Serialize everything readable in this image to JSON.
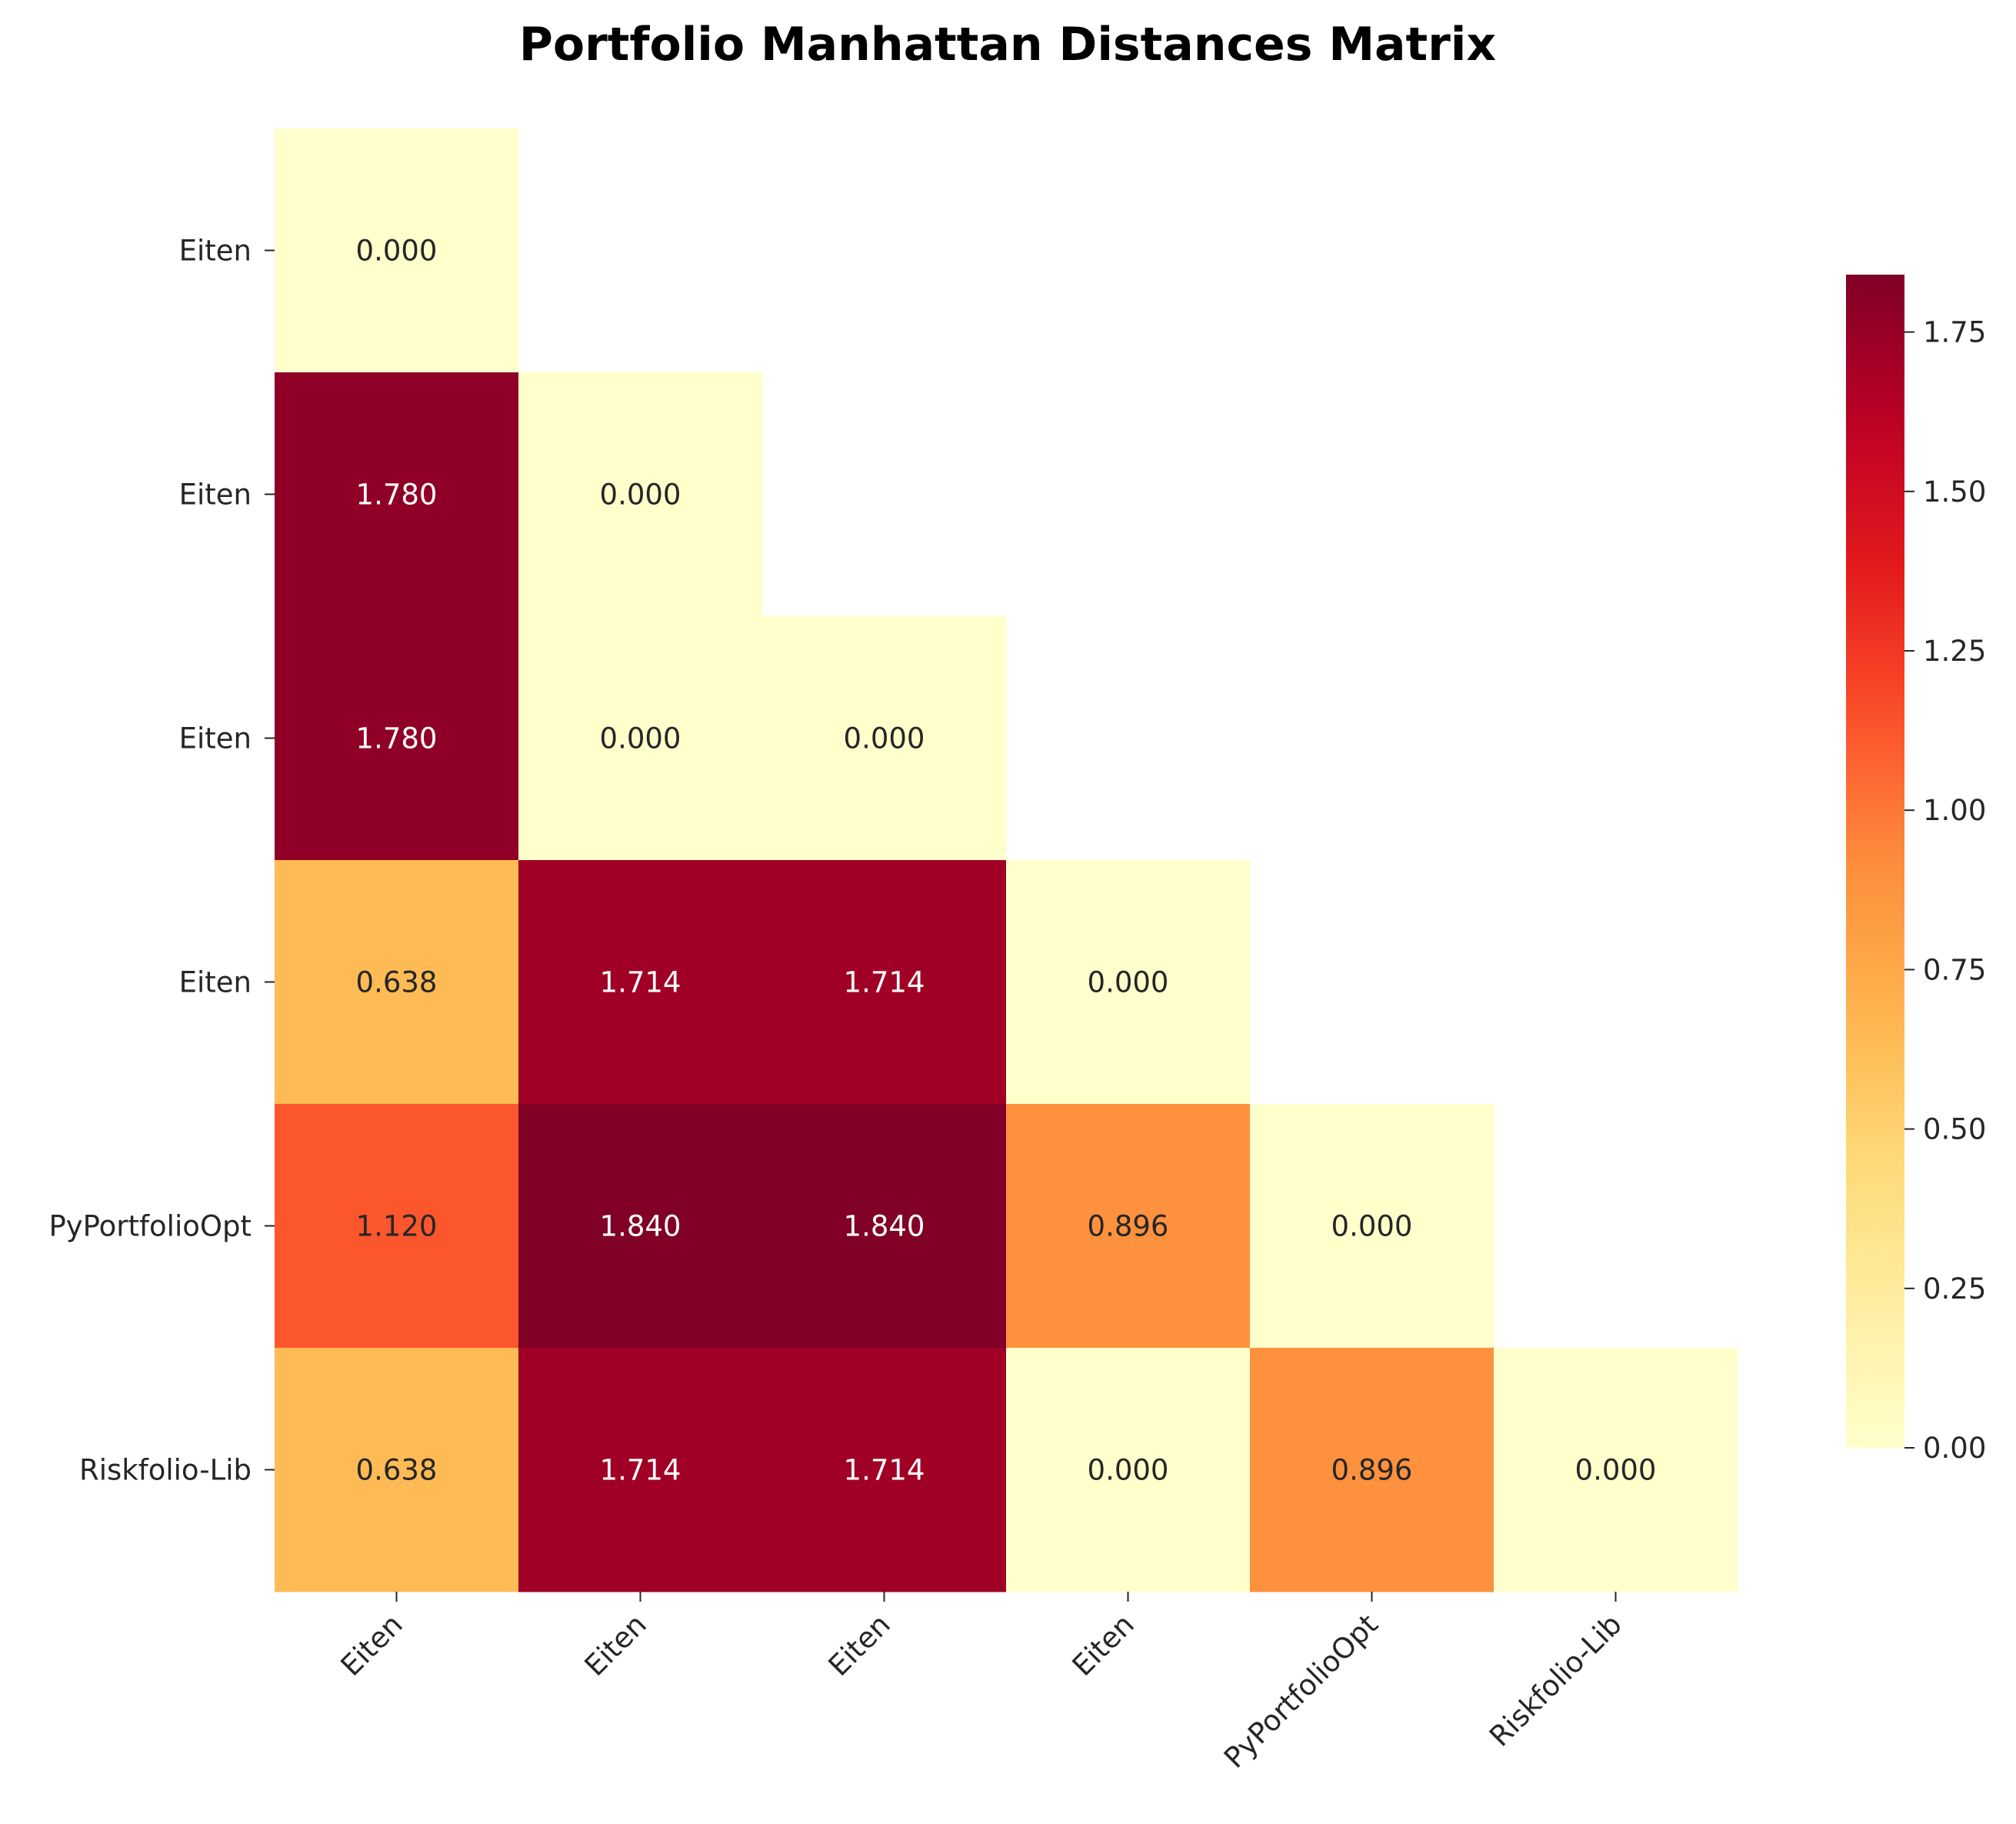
{
  "chart_data": {
    "type": "heatmap",
    "title": "Portfolio Manhattan Distances Matrix",
    "xlabel": "",
    "ylabel": "",
    "row_labels": [
      "Eiten",
      "Eiten",
      "Eiten",
      "Eiten",
      "PyPortfolioOpt",
      "Riskfolio-Lib"
    ],
    "col_labels": [
      "Eiten",
      "Eiten",
      "Eiten",
      "Eiten",
      "PyPortfolioOpt",
      "Riskfolio-Lib"
    ],
    "mask": "upper-triangle",
    "values": [
      [
        0.0
      ],
      [
        1.78,
        0.0
      ],
      [
        1.78,
        0.0,
        0.0
      ],
      [
        0.638,
        1.714,
        1.714,
        0.0
      ],
      [
        1.12,
        1.84,
        1.84,
        0.896,
        0.0
      ],
      [
        0.638,
        1.714,
        1.714,
        0.0,
        0.896,
        0.0
      ]
    ],
    "cell_labels": [
      [
        "0.000"
      ],
      [
        "1.780",
        "0.000"
      ],
      [
        "1.780",
        "0.000",
        "0.000"
      ],
      [
        "0.638",
        "1.714",
        "1.714",
        "0.000"
      ],
      [
        "1.120",
        "1.840",
        "1.840",
        "0.896",
        "0.000"
      ],
      [
        "0.638",
        "1.714",
        "1.714",
        "0.000",
        "0.896",
        "0.000"
      ]
    ],
    "colormap": "YlOrRd",
    "vmin": 0,
    "vmax": 1.84,
    "colorbar": {
      "ticks": [
        0,
        0.25,
        0.5,
        0.75,
        1.0,
        1.25,
        1.5,
        1.75
      ],
      "tick_labels": [
        "0.00",
        "0.25",
        "0.50",
        "0.75",
        "1.00",
        "1.25",
        "1.50",
        "1.75"
      ],
      "placement": "right"
    }
  }
}
